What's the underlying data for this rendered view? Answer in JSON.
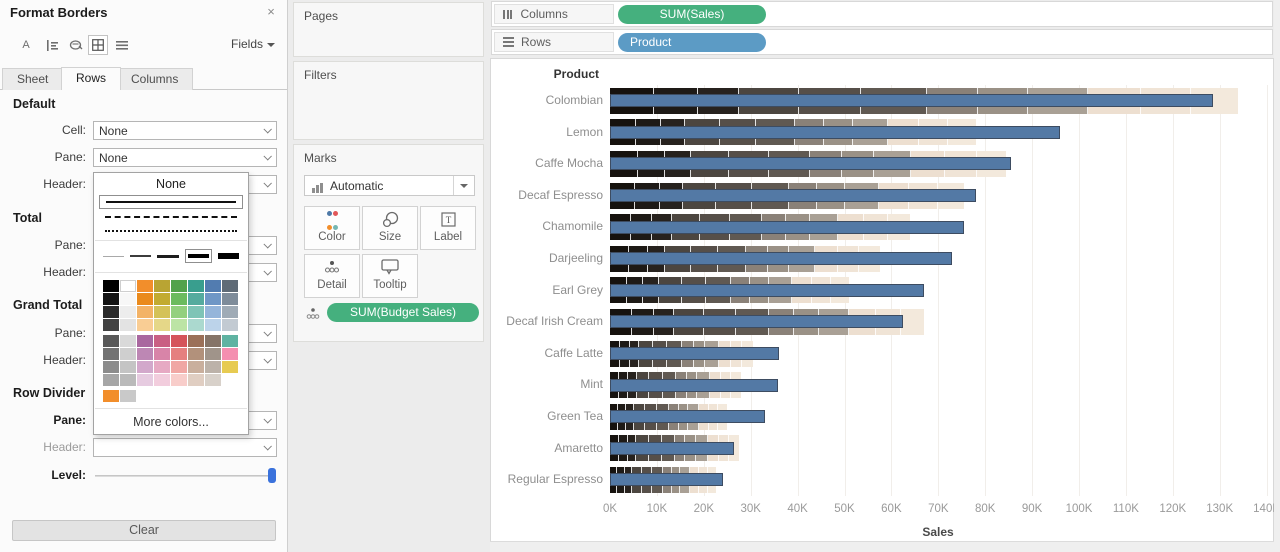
{
  "format_panel": {
    "title": "Format Borders",
    "close": "×",
    "fields_label": "Fields",
    "tabs": {
      "sheet": "Sheet",
      "rows": "Rows",
      "columns": "Columns"
    },
    "default": {
      "heading": "Default",
      "cell_label": "Cell:",
      "cell_value": "None",
      "pane_label": "Pane:",
      "pane_value": "None",
      "header_label": "Header:"
    },
    "total": {
      "heading": "Total",
      "pane_label": "Pane:",
      "header_label": "Header:"
    },
    "grand_total": {
      "heading": "Grand Total",
      "pane_label": "Pane:",
      "header_label": "Header:"
    },
    "row_divider": {
      "heading": "Row Divider",
      "pane_label": "Pane:",
      "header_label": "Header:",
      "level_label": "Level:"
    },
    "clear_label": "Clear"
  },
  "border_popup": {
    "none_label": "None",
    "more_colors_label": "More colors...",
    "palette": [
      [
        "#000000",
        "#ffffff",
        "#f28e2b",
        "#b9a433",
        "#52a24b",
        "#399e8e",
        "#527cb0",
        "#5f6b77"
      ],
      [
        "#141414",
        "#f7f7f7",
        "#ea8a1c",
        "#c2ab31",
        "#6cbb5f",
        "#55ab9e",
        "#6f97c6",
        "#7e8c9a"
      ],
      [
        "#2b2b2b",
        "#ededed",
        "#f3b367",
        "#d4c258",
        "#93d07f",
        "#7fc4b6",
        "#95b5da",
        "#9fabb6"
      ],
      [
        "#424242",
        "#e3e3e3",
        "#f9cd94",
        "#e5d788",
        "#bce4a5",
        "#abd9cf",
        "#bcd3ea",
        "#c2cad2"
      ],
      [
        "#595959",
        "#d9d9d9",
        "#a9679f",
        "#c95f83",
        "#d5545a",
        "#9b7058",
        "#857468",
        "#5fb3a2"
      ],
      [
        "#737373",
        "#cfcfcf",
        "#bd87b4",
        "#d884a8",
        "#e5807f",
        "#b2917b",
        "#a0948a",
        "#f48fb0"
      ],
      [
        "#8c8c8c",
        "#c4c4c4",
        "#d2a8cb",
        "#e6a9c3",
        "#f0a7a4",
        "#c9af9d",
        "#bcb2a9",
        "#e7cb52"
      ],
      [
        "#a6a6a6",
        "#bababa",
        "#e6cbe0",
        "#f2cddd",
        "#f8cdca",
        "#e0cec2",
        "#d8d1ca",
        ""
      ],
      [
        "#f28e2b",
        "#c9c9c9",
        "",
        "",
        "",
        "",
        "",
        ""
      ]
    ]
  },
  "cards": {
    "pages_title": "Pages",
    "filters_title": "Filters",
    "marks_title": "Marks",
    "mark_type": "Automatic",
    "mark_buttons": [
      "Color",
      "Size",
      "Label",
      "Detail",
      "Tooltip"
    ],
    "encoding_pill": "SUM(Budget Sales)"
  },
  "shelves": {
    "columns_label": "Columns",
    "rows_label": "Rows",
    "columns_pill": "SUM(Sales)",
    "rows_pill": "Product"
  },
  "chart_data": {
    "type": "bar",
    "orientation": "horizontal",
    "row_header": "Product",
    "xlabel": "Sales",
    "xlim": [
      0,
      140000
    ],
    "grid": "vertical, every 10K",
    "x_ticks": [
      "0K",
      "10K",
      "20K",
      "30K",
      "40K",
      "50K",
      "60K",
      "70K",
      "80K",
      "90K",
      "100K",
      "110K",
      "120K",
      "130K",
      "140K"
    ],
    "series": [
      {
        "name": "SUM(Sales)",
        "style": "blue bar",
        "color": "#5379a5"
      },
      {
        "name": "SUM(Budget Sales)",
        "style": "segmented gray-to-beige background bar (bullet reference)"
      }
    ],
    "products": [
      {
        "name": "Colombian",
        "sales": 128500,
        "budget_sales": 134000
      },
      {
        "name": "Lemon",
        "sales": 96000,
        "budget_sales": 78000
      },
      {
        "name": "Caffe Mocha",
        "sales": 85500,
        "budget_sales": 84500
      },
      {
        "name": "Decaf Espresso",
        "sales": 78000,
        "budget_sales": 75500
      },
      {
        "name": "Chamomile",
        "sales": 75500,
        "budget_sales": 64000
      },
      {
        "name": "Darjeeling",
        "sales": 73000,
        "budget_sales": 57500
      },
      {
        "name": "Earl Grey",
        "sales": 67000,
        "budget_sales": 51000
      },
      {
        "name": "Decaf Irish Cream",
        "sales": 62500,
        "budget_sales": 67000
      },
      {
        "name": "Caffe Latte",
        "sales": 36000,
        "budget_sales": 30500
      },
      {
        "name": "Mint",
        "sales": 35800,
        "budget_sales": 28000
      },
      {
        "name": "Green Tea",
        "sales": 33000,
        "budget_sales": 25000
      },
      {
        "name": "Amaretto",
        "sales": 26500,
        "budget_sales": 27500
      },
      {
        "name": "Regular Espresso",
        "sales": 24000,
        "budget_sales": 22500
      }
    ]
  },
  "colors": {
    "pill_green": "#45b07e",
    "pill_blue": "#5c9bc5",
    "bar_blue": "#5379a5",
    "bar_blue_border": "#3d4c61",
    "slider_accent": "#3a72dc",
    "color_icon_dots": [
      "#4e79a7",
      "#e15759",
      "#f28e2b",
      "#76b7b2"
    ],
    "budget_segments": [
      {
        "upto": 0.07,
        "color": "#16120e"
      },
      {
        "upto": 0.14,
        "color": "#1e1a16"
      },
      {
        "upto": 0.205,
        "color": "#27221e"
      },
      {
        "upto": 0.3,
        "color": "#4c4640"
      },
      {
        "upto": 0.4,
        "color": "#564f49"
      },
      {
        "upto": 0.505,
        "color": "#605952"
      },
      {
        "upto": 0.585,
        "color": "#8a8178"
      },
      {
        "upto": 0.665,
        "color": "#9a9186"
      },
      {
        "upto": 0.76,
        "color": "#a9a095"
      },
      {
        "upto": 0.845,
        "color": "#eddfd0"
      },
      {
        "upto": 0.925,
        "color": "#f0e4d6"
      },
      {
        "upto": 1.0,
        "color": "#f3e9dc"
      }
    ]
  }
}
